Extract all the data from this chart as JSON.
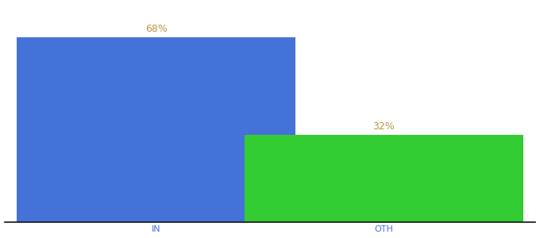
{
  "categories": [
    "IN",
    "OTH"
  ],
  "values": [
    68,
    32
  ],
  "bar_colors": [
    "#4472d8",
    "#33cc33"
  ],
  "label_color": "#b8963c",
  "label_fontsize": 9,
  "tick_fontsize": 8,
  "tick_color": "#4472d8",
  "background_color": "#ffffff",
  "ylim": [
    0,
    80
  ],
  "bar_width": 0.55,
  "x_positions": [
    0.3,
    0.75
  ],
  "xlim": [
    0.0,
    1.05
  ]
}
